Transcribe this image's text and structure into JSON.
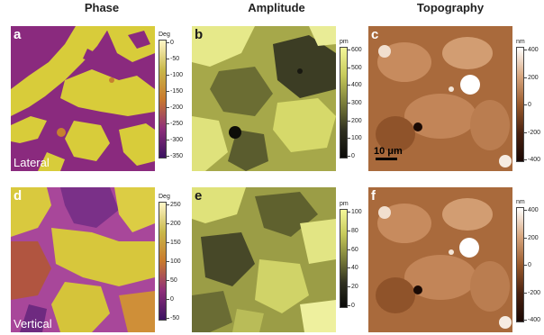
{
  "columns": {
    "phase": "Phase",
    "amplitude": "Amplitude",
    "topography": "Topography"
  },
  "panels": {
    "a": "a",
    "b": "b",
    "c": "c",
    "d": "d",
    "e": "e",
    "f": "f"
  },
  "modes": {
    "lateral": "Lateral",
    "vertical": "Vertical"
  },
  "scalebar": "10 μm",
  "colorbars": {
    "a": {
      "unit": "Deg",
      "ticks": [
        "0",
        "-50",
        "-100",
        "-150",
        "-200",
        "-250",
        "-300",
        "-350"
      ],
      "colors": [
        "#fff7c8",
        "#c9b84a",
        "#c97a2d",
        "#8f2f7a",
        "#3a1260"
      ]
    },
    "b": {
      "unit": "pm",
      "ticks": [
        "600",
        "500",
        "400",
        "300",
        "200",
        "100",
        "0"
      ],
      "colors": [
        "#f4f79a",
        "#c7ca5a",
        "#7c7f3a",
        "#2f3020",
        "#0a0a08"
      ]
    },
    "c": {
      "unit": "nm",
      "ticks": [
        "400",
        "200",
        "0",
        "-200",
        "-400"
      ],
      "colors": [
        "#ffffff",
        "#d8a67e",
        "#9a5a2c",
        "#4a2210",
        "#1a0804"
      ]
    },
    "d": {
      "unit": "Deg",
      "ticks": [
        "250",
        "200",
        "150",
        "100",
        "50",
        "0",
        "-50"
      ],
      "colors": [
        "#fff7c8",
        "#c9b84a",
        "#c97a2d",
        "#8f2f7a",
        "#3a1260"
      ]
    },
    "e": {
      "unit": "pm",
      "ticks": [
        "100",
        "80",
        "60",
        "40",
        "20",
        "0"
      ],
      "colors": [
        "#f4f79a",
        "#c7ca5a",
        "#7c7f3a",
        "#2f3020",
        "#0a0a08"
      ]
    },
    "f": {
      "unit": "nm",
      "ticks": [
        "400",
        "200",
        "0",
        "-200",
        "-400"
      ],
      "colors": [
        "#ffffff",
        "#d8a67e",
        "#9a5a2c",
        "#4a2210",
        "#1a0804"
      ]
    }
  }
}
